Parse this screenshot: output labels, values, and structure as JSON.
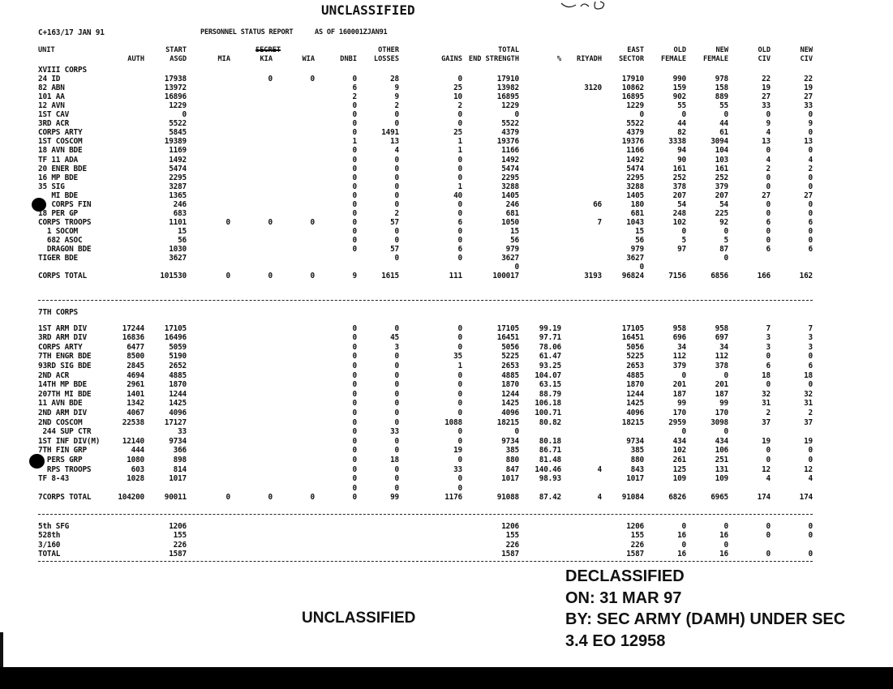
{
  "classification_top": "UNCLASSIFIED",
  "classification_bottom": "UNCLASSIFIED",
  "header": {
    "ref": "C+163/17 JAN 91",
    "title": "PERSONNEL STATUS REPORT",
    "as_of": "AS OF 160001ZJAN91"
  },
  "columns": {
    "unit": [
      "UNIT",
      ""
    ],
    "auth": [
      "",
      "AUTH"
    ],
    "asgd": [
      "START",
      "ASGD"
    ],
    "mia": [
      "",
      "MIA"
    ],
    "kia": [
      "SECRET",
      "KIA"
    ],
    "wia": [
      "",
      "WIA"
    ],
    "dnbi": [
      "",
      "DNBI"
    ],
    "other": [
      "OTHER",
      "LOSSES"
    ],
    "gains": [
      "",
      "GAINS"
    ],
    "total": [
      "TOTAL",
      "END STRENGTH"
    ],
    "pct": [
      "",
      "%"
    ],
    "riyadh": [
      "",
      "RIYADH"
    ],
    "east": [
      "EAST",
      "SECTOR"
    ],
    "oldf": [
      "OLD",
      "FEMALE"
    ],
    "newf": [
      "NEW",
      "FEMALE"
    ],
    "oldciv": [
      "OLD",
      "CIV"
    ],
    "newciv": [
      "NEW",
      "CIV"
    ]
  },
  "sections": [
    {
      "title": "",
      "rows": [
        [
          "XVIII CORPS",
          "",
          "",
          "",
          "",
          "",
          "",
          "",
          "",
          "",
          "",
          "",
          "",
          "",
          "",
          "",
          ""
        ],
        [
          "24 ID",
          "",
          "17938",
          "",
          "0",
          "0",
          "0",
          "28",
          "0",
          "17910",
          "",
          "",
          "17910",
          "990",
          "978",
          "22",
          "22"
        ],
        [
          "82 ABN",
          "",
          "13972",
          "",
          "",
          "",
          "6",
          "9",
          "25",
          "13982",
          "",
          "3120",
          "10862",
          "159",
          "158",
          "19",
          "19"
        ],
        [
          "101 AA",
          "",
          "16896",
          "",
          "",
          "",
          "2",
          "9",
          "10",
          "16895",
          "",
          "",
          "16895",
          "902",
          "889",
          "27",
          "27"
        ],
        [
          "12 AVN",
          "",
          "1229",
          "",
          "",
          "",
          "0",
          "2",
          "2",
          "1229",
          "",
          "",
          "1229",
          "55",
          "55",
          "33",
          "33"
        ],
        [
          "1ST CAV",
          "",
          "0",
          "",
          "",
          "",
          "0",
          "0",
          "0",
          "0",
          "",
          "",
          "0",
          "0",
          "0",
          "0",
          "0"
        ],
        [
          "3RD ACR",
          "",
          "5522",
          "",
          "",
          "",
          "0",
          "0",
          "0",
          "5522",
          "",
          "",
          "5522",
          "44",
          "44",
          "9",
          "9"
        ],
        [
          "CORPS ARTY",
          "",
          "5845",
          "",
          "",
          "",
          "0",
          "1491",
          "25",
          "4379",
          "",
          "",
          "4379",
          "82",
          "61",
          "4",
          "0"
        ],
        [
          "1ST COSCOM",
          "",
          "19389",
          "",
          "",
          "",
          "1",
          "13",
          "1",
          "19376",
          "",
          "",
          "19376",
          "3338",
          "3094",
          "13",
          "13"
        ],
        [
          "18 AVN BDE",
          "",
          "1169",
          "",
          "",
          "",
          "0",
          "4",
          "1",
          "1166",
          "",
          "",
          "1166",
          "94",
          "104",
          "0",
          "0"
        ],
        [
          "TF 11 ADA",
          "",
          "1492",
          "",
          "",
          "",
          "0",
          "0",
          "0",
          "1492",
          "",
          "",
          "1492",
          "90",
          "103",
          "4",
          "4"
        ],
        [
          "20 ENER BDE",
          "",
          "5474",
          "",
          "",
          "",
          "0",
          "0",
          "0",
          "5474",
          "",
          "",
          "5474",
          "161",
          "161",
          "2",
          "2"
        ],
        [
          "16 MP BDE",
          "",
          "2295",
          "",
          "",
          "",
          "0",
          "0",
          "0",
          "2295",
          "",
          "",
          "2295",
          "252",
          "252",
          "0",
          "0"
        ],
        [
          "35 SIG",
          "",
          "3287",
          "",
          "",
          "",
          "0",
          "0",
          "1",
          "3288",
          "",
          "",
          "3288",
          "378",
          "379",
          "0",
          "0"
        ],
        [
          "   MI BDE",
          "",
          "1365",
          "",
          "",
          "",
          "0",
          "0",
          "40",
          "1405",
          "",
          "",
          "1405",
          "207",
          "207",
          "27",
          "27"
        ],
        [
          "   CORPS FIN",
          "",
          "246",
          "",
          "",
          "",
          "0",
          "0",
          "0",
          "246",
          "",
          "66",
          "180",
          "54",
          "54",
          "0",
          "0"
        ],
        [
          "18 PER GP",
          "",
          "683",
          "",
          "",
          "",
          "0",
          "2",
          "0",
          "681",
          "",
          "",
          "681",
          "248",
          "225",
          "0",
          "0"
        ],
        [
          "CORPS TROOPS",
          "",
          "1101",
          "0",
          "0",
          "0",
          "0",
          "57",
          "6",
          "1050",
          "",
          "7",
          "1043",
          "102",
          "92",
          "6",
          "6"
        ],
        [
          "  1 SOCOM",
          "",
          "15",
          "",
          "",
          "",
          "0",
          "0",
          "0",
          "15",
          "",
          "",
          "15",
          "0",
          "0",
          "0",
          "0"
        ],
        [
          "  682 ASOC",
          "",
          "56",
          "",
          "",
          "",
          "0",
          "0",
          "0",
          "56",
          "",
          "",
          "56",
          "5",
          "5",
          "0",
          "0"
        ],
        [
          "  DRAGON BDE",
          "",
          "1030",
          "",
          "",
          "",
          "0",
          "57",
          "6",
          "979",
          "",
          "",
          "979",
          "97",
          "87",
          "6",
          "6"
        ],
        [
          "TIGER BDE",
          "",
          "3627",
          "",
          "",
          "",
          "",
          "0",
          "0",
          "3627",
          "",
          "",
          "3627",
          "",
          "0",
          "",
          ""
        ],
        [
          "",
          "",
          "",
          "",
          "",
          "",
          "",
          "",
          "",
          "0",
          "",
          "",
          "0",
          "",
          "",
          "",
          ""
        ],
        [
          "CORPS TOTAL",
          "",
          "101530",
          "0",
          "0",
          "0",
          "9",
          "1615",
          "111",
          "100017",
          "",
          "3193",
          "96824",
          "7156",
          "6856",
          "166",
          "162"
        ]
      ]
    },
    {
      "title": "7TH CORPS",
      "rows": [
        [
          "1ST ARM DIV",
          "17244",
          "17105",
          "",
          "",
          "",
          "0",
          "0",
          "0",
          "17105",
          "99.19",
          "",
          "17105",
          "958",
          "958",
          "7",
          "7"
        ],
        [
          "3RD ARM DIV",
          "16836",
          "16496",
          "",
          "",
          "",
          "0",
          "45",
          "0",
          "16451",
          "97.71",
          "",
          "16451",
          "696",
          "697",
          "3",
          "3"
        ],
        [
          "CORPS ARTY",
          "6477",
          "5059",
          "",
          "",
          "",
          "0",
          "3",
          "0",
          "5056",
          "78.06",
          "",
          "5056",
          "34",
          "34",
          "3",
          "3"
        ],
        [
          "7TH ENGR BDE",
          "8500",
          "5190",
          "",
          "",
          "",
          "0",
          "0",
          "35",
          "5225",
          "61.47",
          "",
          "5225",
          "112",
          "112",
          "0",
          "0"
        ],
        [
          "93RD SIG BDE",
          "2845",
          "2652",
          "",
          "",
          "",
          "0",
          "0",
          "1",
          "2653",
          "93.25",
          "",
          "2653",
          "379",
          "378",
          "6",
          "6"
        ],
        [
          "2ND ACR",
          "4694",
          "4885",
          "",
          "",
          "",
          "0",
          "0",
          "0",
          "4885",
          "104.07",
          "",
          "4885",
          "0",
          "0",
          "18",
          "18"
        ],
        [
          "14TH MP BDE",
          "2961",
          "1870",
          "",
          "",
          "",
          "0",
          "0",
          "0",
          "1870",
          "63.15",
          "",
          "1870",
          "201",
          "201",
          "0",
          "0"
        ],
        [
          "207TH MI BDE",
          "1401",
          "1244",
          "",
          "",
          "",
          "0",
          "0",
          "0",
          "1244",
          "88.79",
          "",
          "1244",
          "187",
          "187",
          "32",
          "32"
        ],
        [
          "11 AVN BDE",
          "1342",
          "1425",
          "",
          "",
          "",
          "0",
          "0",
          "0",
          "1425",
          "106.18",
          "",
          "1425",
          "99",
          "99",
          "31",
          "31"
        ],
        [
          "2ND ARM DIV",
          "4067",
          "4096",
          "",
          "",
          "",
          "0",
          "0",
          "0",
          "4096",
          "100.71",
          "",
          "4096",
          "170",
          "170",
          "2",
          "2"
        ],
        [
          "2ND COSCOM",
          "22538",
          "17127",
          "",
          "",
          "",
          "0",
          "0",
          "1088",
          "18215",
          "80.82",
          "",
          "18215",
          "2959",
          "3098",
          "37",
          "37"
        ],
        [
          " 244 SUP CTR",
          "",
          "33",
          "",
          "",
          "",
          "0",
          "33",
          "0",
          "0",
          "",
          "",
          "",
          "0",
          "0",
          "",
          ""
        ],
        [
          "1ST INF DIV(M)",
          "12140",
          "9734",
          "",
          "",
          "",
          "0",
          "0",
          "0",
          "9734",
          "80.18",
          "",
          "9734",
          "434",
          "434",
          "19",
          "19"
        ],
        [
          "7TH FIN GRP",
          "444",
          "366",
          "",
          "",
          "",
          "0",
          "0",
          "19",
          "385",
          "86.71",
          "",
          "385",
          "102",
          "106",
          "0",
          "0"
        ],
        [
          "  PERS GRP",
          "1080",
          "898",
          "",
          "",
          "",
          "0",
          "18",
          "0",
          "880",
          "81.48",
          "",
          "880",
          "261",
          "251",
          "0",
          "0"
        ],
        [
          "  RPS TROOPS",
          "603",
          "814",
          "",
          "",
          "",
          "0",
          "0",
          "33",
          "847",
          "140.46",
          "4",
          "843",
          "125",
          "131",
          "12",
          "12"
        ],
        [
          "TF 8-43",
          "1028",
          "1017",
          "",
          "",
          "",
          "0",
          "0",
          "0",
          "1017",
          "98.93",
          "",
          "1017",
          "109",
          "109",
          "4",
          "4"
        ],
        [
          "",
          "",
          "",
          "",
          "",
          "",
          "0",
          "0",
          "0",
          "",
          "",
          "",
          "",
          "",
          "",
          "",
          ""
        ],
        [
          "7CORPS TOTAL",
          "104200",
          "90011",
          "0",
          "0",
          "0",
          "0",
          "99",
          "1176",
          "91088",
          "87.42",
          "4",
          "91084",
          "6826",
          "6965",
          "174",
          "174"
        ]
      ]
    },
    {
      "title": "",
      "rows": [
        [
          "5th SFG",
          "",
          "1206",
          "",
          "",
          "",
          "",
          "",
          "",
          "1206",
          "",
          "",
          "1206",
          "0",
          "0",
          "0",
          "0"
        ],
        [
          "528th",
          "",
          "155",
          "",
          "",
          "",
          "",
          "",
          "",
          "155",
          "",
          "",
          "155",
          "16",
          "16",
          "0",
          "0"
        ],
        [
          "3/160",
          "",
          "226",
          "",
          "",
          "",
          "",
          "",
          "",
          "226",
          "",
          "",
          "226",
          "0",
          "0",
          "",
          ""
        ],
        [
          "TOTAL",
          "",
          "1587",
          "",
          "",
          "",
          "",
          "",
          "",
          "1587",
          "",
          "",
          "1587",
          "16",
          "16",
          "0",
          "0"
        ]
      ]
    }
  ],
  "declassification": {
    "line1": "DECLASSIFIED",
    "line2": "ON: 31 MAR 97",
    "line3": "BY: SEC ARMY (DAMH) UNDER SEC",
    "line4": "3.4 EO 12958"
  },
  "colors": {
    "ink": "#111111",
    "paper": "#ffffff"
  }
}
